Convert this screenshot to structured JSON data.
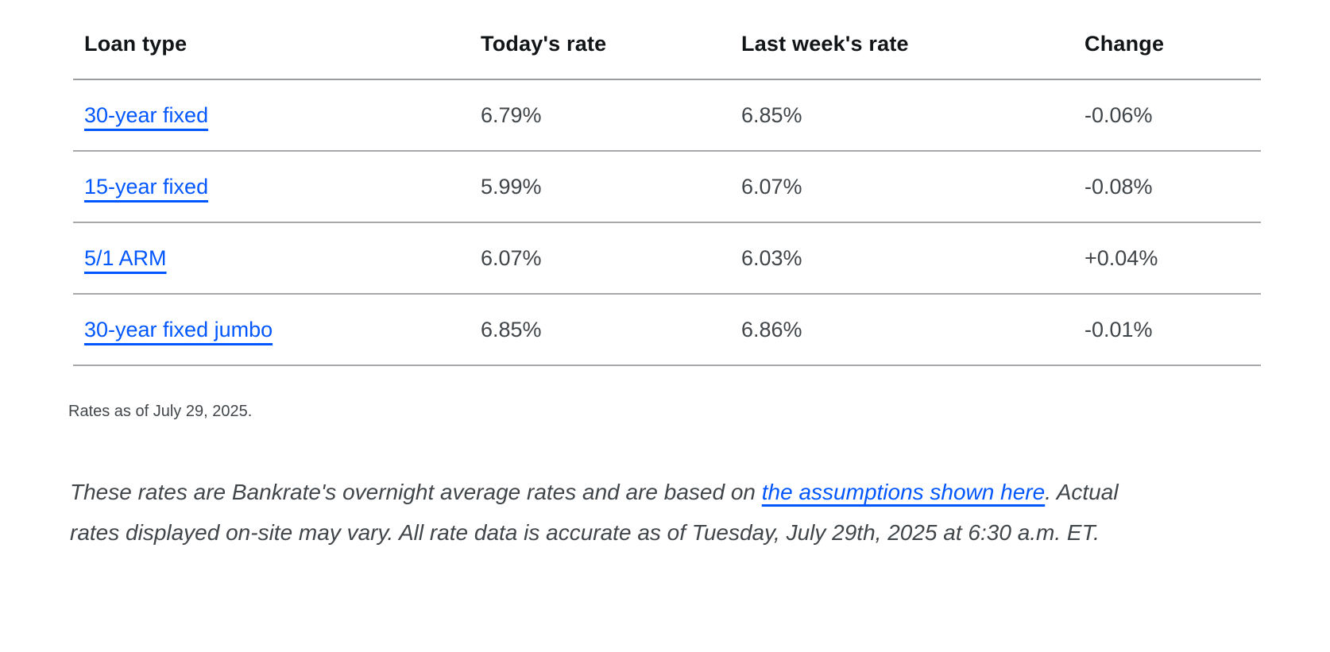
{
  "table": {
    "columns": [
      "Loan type",
      "Today's rate",
      "Last week's rate",
      "Change"
    ],
    "rows": [
      {
        "loan_type": "30-year fixed",
        "today": "6.79%",
        "last_week": "6.85%",
        "change": "-0.06%"
      },
      {
        "loan_type": "15-year fixed",
        "today": "5.99%",
        "last_week": "6.07%",
        "change": "-0.08%"
      },
      {
        "loan_type": "5/1 ARM",
        "today": "6.07%",
        "last_week": "6.03%",
        "change": "+0.04%"
      },
      {
        "loan_type": "30-year fixed jumbo",
        "today": "6.85%",
        "last_week": "6.86%",
        "change": "-0.01%"
      }
    ]
  },
  "note": "Rates as of July 29, 2025.",
  "disclaimer": {
    "before_link": "These rates are Bankrate's overnight average rates and are based on ",
    "link_label": "the assumptions shown here",
    "after_link": ". Actual rates displayed on-site may vary. All rate data is accurate as of Tuesday, July 29th, 2025 at 6:30 a.m. ET."
  },
  "colors": {
    "link_blue": "#0157ff",
    "header_text": "#121517",
    "body_text": "#404549",
    "divider_gray": "#a6a8ab"
  }
}
